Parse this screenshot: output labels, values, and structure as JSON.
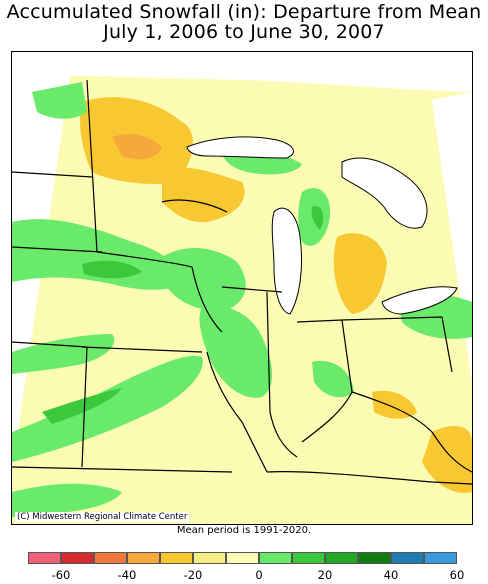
{
  "title": {
    "line1": "Accumulated Snowfall (in): Departure from Mean",
    "line2": "July 1, 2006 to June 30, 2007"
  },
  "credit": "(C) Midwestern Regional Climate Center",
  "mean_note": "Mean period is 1991-2020.",
  "legend": {
    "colors": [
      "#f0607a",
      "#d42c2c",
      "#f0783c",
      "#f5a83c",
      "#f7c832",
      "#f3ef84",
      "#fbfbb4",
      "#6aea6a",
      "#3cc83c",
      "#22a822",
      "#107c10",
      "#1e7cb0",
      "#3a9ae0"
    ],
    "labels": [
      "-60",
      "-40",
      "-20",
      "0",
      "20",
      "40",
      "60"
    ]
  },
  "colors": {
    "background_fill": "#fbfbb4",
    "zero_band": "#f3ef84",
    "deficit": "#f7c832",
    "deficit_strong": "#f5a83c",
    "surplus": "#6aea6a",
    "surplus_strong": "#3cc83c",
    "surplus_max": "#107c10",
    "water": "#ffffff",
    "border": "#000000"
  }
}
